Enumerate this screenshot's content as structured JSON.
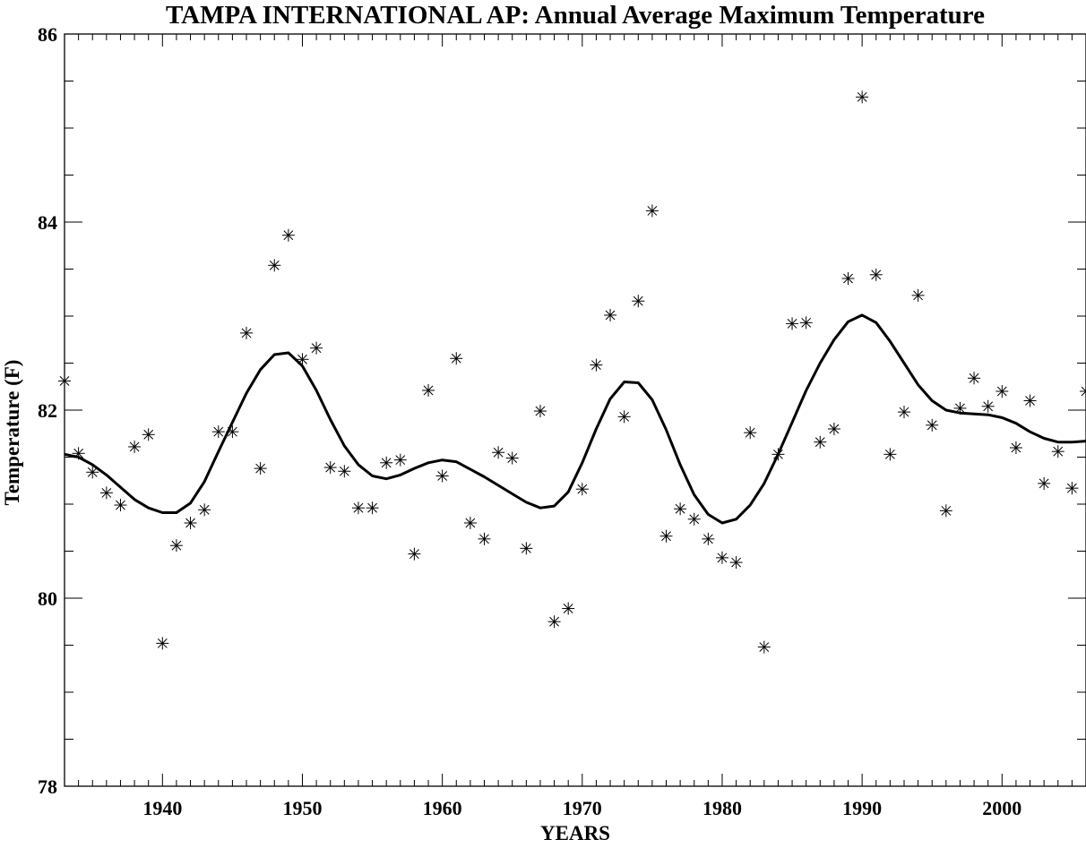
{
  "chart_data": {
    "type": "scatter",
    "title": "TAMPA INTERNATIONAL AP: Annual Average Maximum Temperature",
    "xlabel": "YEARS",
    "ylabel": "Temperature (F)",
    "xlim": [
      1933,
      2006
    ],
    "ylim": [
      78,
      86
    ],
    "x_ticks": [
      1940,
      1950,
      1960,
      1970,
      1980,
      1990,
      2000
    ],
    "y_ticks": [
      78,
      80,
      82,
      84,
      86
    ],
    "grid": false,
    "colors": {
      "marks": "#000000",
      "background": "#ffffff"
    },
    "series": [
      {
        "kind": "markers",
        "marker": "asterisk",
        "x": [
          1933,
          1934,
          1935,
          1936,
          1937,
          1938,
          1939,
          1940,
          1941,
          1942,
          1943,
          1944,
          1945,
          1946,
          1947,
          1948,
          1949,
          1950,
          1951,
          1952,
          1953,
          1954,
          1955,
          1956,
          1957,
          1958,
          1959,
          1960,
          1961,
          1962,
          1963,
          1964,
          1965,
          1966,
          1967,
          1968,
          1969,
          1970,
          1971,
          1972,
          1973,
          1974,
          1975,
          1976,
          1977,
          1978,
          1979,
          1980,
          1981,
          1982,
          1983,
          1984,
          1985,
          1986,
          1987,
          1988,
          1989,
          1990,
          1991,
          1992,
          1993,
          1994,
          1995,
          1996,
          1997,
          1998,
          1999,
          2000,
          2001,
          2002,
          2003,
          2004,
          2005,
          2006
        ],
        "y": [
          82.31,
          81.54,
          81.34,
          81.12,
          80.99,
          81.61,
          81.74,
          79.52,
          80.56,
          80.8,
          80.94,
          81.77,
          81.77,
          82.82,
          81.38,
          83.54,
          83.86,
          82.54,
          82.66,
          81.39,
          81.35,
          80.96,
          80.96,
          81.44,
          81.47,
          80.47,
          82.21,
          81.3,
          82.55,
          80.8,
          80.63,
          81.55,
          81.49,
          80.53,
          81.99,
          79.75,
          79.89,
          81.16,
          82.48,
          83.01,
          81.93,
          83.16,
          84.12,
          80.66,
          80.95,
          80.84,
          80.63,
          80.43,
          80.38,
          81.76,
          79.48,
          81.53,
          82.92,
          82.93,
          81.66,
          81.8,
          83.4,
          85.33,
          83.44,
          81.53,
          81.98,
          83.22,
          81.84,
          80.93,
          82.02,
          82.34,
          82.04,
          82.2,
          81.6,
          82.1,
          81.22,
          81.56,
          81.17,
          82.2
        ]
      },
      {
        "kind": "smooth-line",
        "x": [
          1933,
          1934,
          1935,
          1936,
          1937,
          1938,
          1939,
          1940,
          1941,
          1942,
          1943,
          1944,
          1945,
          1946,
          1947,
          1948,
          1949,
          1950,
          1951,
          1952,
          1953,
          1954,
          1955,
          1956,
          1957,
          1958,
          1959,
          1960,
          1961,
          1962,
          1963,
          1964,
          1965,
          1966,
          1967,
          1968,
          1969,
          1970,
          1971,
          1972,
          1973,
          1974,
          1975,
          1976,
          1977,
          1978,
          1979,
          1980,
          1981,
          1982,
          1983,
          1984,
          1985,
          1986,
          1987,
          1988,
          1989,
          1990,
          1991,
          1992,
          1993,
          1994,
          1995,
          1996,
          1997,
          1998,
          1999,
          2000,
          2001,
          2002,
          2003,
          2004,
          2005,
          2006
        ],
        "y": [
          81.53,
          81.5,
          81.42,
          81.31,
          81.18,
          81.05,
          80.96,
          80.91,
          80.91,
          81.01,
          81.24,
          81.56,
          81.87,
          82.18,
          82.43,
          82.59,
          82.61,
          82.47,
          82.21,
          81.9,
          81.62,
          81.42,
          81.3,
          81.27,
          81.31,
          81.38,
          81.44,
          81.47,
          81.45,
          81.37,
          81.29,
          81.2,
          81.11,
          81.02,
          80.96,
          80.98,
          81.13,
          81.44,
          81.8,
          82.12,
          82.3,
          82.29,
          82.11,
          81.79,
          81.42,
          81.1,
          80.89,
          80.8,
          80.84,
          80.99,
          81.22,
          81.53,
          81.87,
          82.21,
          82.5,
          82.75,
          82.94,
          83.01,
          82.93,
          82.73,
          82.5,
          82.27,
          82.1,
          82.0,
          81.97,
          81.96,
          81.95,
          81.92,
          81.86,
          81.77,
          81.7,
          81.66,
          81.66,
          81.67
        ]
      }
    ]
  }
}
